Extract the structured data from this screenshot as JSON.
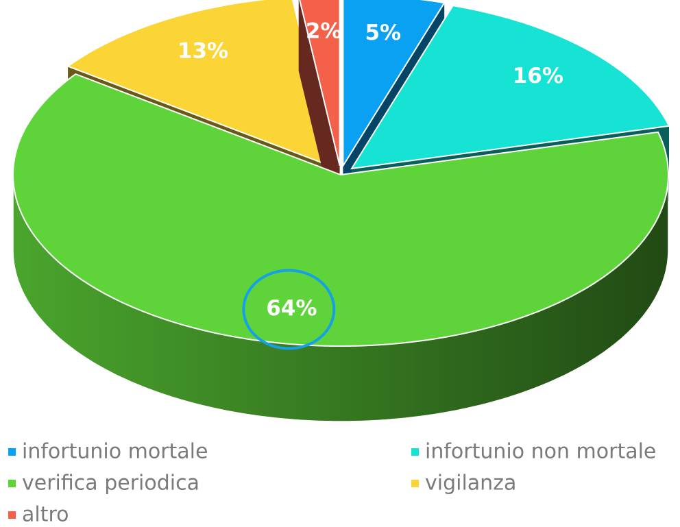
{
  "chart_data": {
    "type": "pie3d",
    "categories": [
      "infortunio mortale",
      "infortunio non mortale",
      "verifica periodica",
      "vigilanza",
      "altro"
    ],
    "values": [
      5,
      16,
      64,
      13,
      2
    ],
    "value_labels": [
      "5%",
      "16%",
      "64%",
      "13%",
      "2%"
    ],
    "colors": [
      "#0aa1f2",
      "#16e3d3",
      "#5fd43a",
      "#fbd535",
      "#f4614a"
    ],
    "legend": "bottom"
  }
}
